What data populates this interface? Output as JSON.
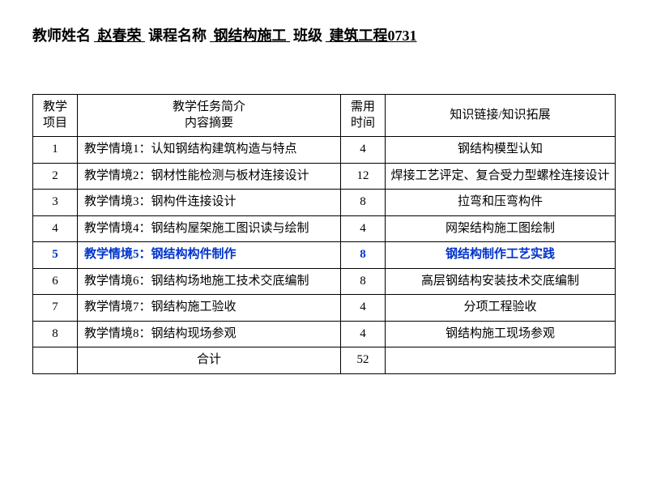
{
  "header": {
    "teacher_label": "教师姓名",
    "teacher_value": "  赵春荣  ",
    "course_label": "课程名称",
    "course_value": "     钢结构施工       ",
    "class_label": "班级",
    "class_value": "     建筑工程0731   "
  },
  "table": {
    "columns": {
      "c1": "教学\n项目",
      "c2": "教学任务简介\n内容摘要",
      "c3": "需用\n时间",
      "c4": "知识链接/知识拓展"
    },
    "rows": [
      {
        "no": "1",
        "desc": "教学情境1：认知钢结构建筑构造与特点",
        "time": "4",
        "ext": "钢结构模型认知",
        "hi": false
      },
      {
        "no": "2",
        "desc": "教学情境2：钢材性能检测与板材连接设计",
        "time": "12",
        "ext": "焊接工艺评定、复合受力型螺栓连接设计",
        "hi": false
      },
      {
        "no": "3",
        "desc": "教学情境3：钢构件连接设计",
        "time": "8",
        "ext": "拉弯和压弯构件",
        "hi": false
      },
      {
        "no": "4",
        "desc": "教学情境4：钢结构屋架施工图识读与绘制",
        "time": "4",
        "ext": "网架结构施工图绘制",
        "hi": false
      },
      {
        "no": "5",
        "desc": "教学情境5：钢结构构件制作",
        "time": "8",
        "ext": "钢结构制作工艺实践",
        "hi": true
      },
      {
        "no": "6",
        "desc": "教学情境6：钢结构场地施工技术交底编制",
        "time": "8",
        "ext": "高层钢结构安装技术交底编制",
        "hi": false
      },
      {
        "no": "7",
        "desc": "教学情境7：钢结构施工验收",
        "time": "4",
        "ext": "分项工程验收",
        "hi": false
      },
      {
        "no": "8",
        "desc": "教学情境8：钢结构现场参观",
        "time": "4",
        "ext": "钢结构施工现场参观",
        "hi": false
      }
    ],
    "total_label": "合计",
    "total_value": "52"
  },
  "style": {
    "highlight_color": "#0033cc",
    "border_color": "#000000",
    "bg": "#ffffff",
    "font": "SimSun"
  }
}
